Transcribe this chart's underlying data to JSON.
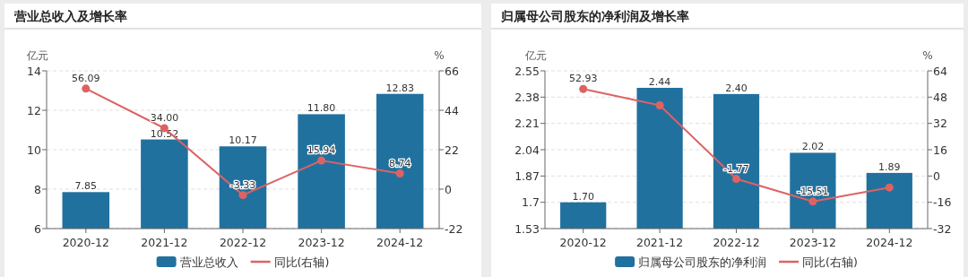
{
  "chart_data": [
    {
      "type": "bar",
      "title": "营业总收入及增长率",
      "ylabel": "亿元",
      "y2label": "%",
      "categories": [
        "2020-12",
        "2021-12",
        "2022-12",
        "2023-12",
        "2024-12"
      ],
      "series": [
        {
          "name": "营业总收入",
          "color": "#21719f",
          "values": [
            7.85,
            10.52,
            10.17,
            11.8,
            12.83
          ],
          "value_labels": [
            "7.85",
            "10.52",
            "10.17",
            "11.80",
            "12.83"
          ]
        },
        {
          "name": "同比(右轴)",
          "type": "line",
          "axis": "y2",
          "color": "#dd6363",
          "values": [
            56.09,
            34.0,
            -3.33,
            15.94,
            8.74
          ],
          "value_labels": [
            "56.09",
            "34.00",
            "-3.33",
            "15.94",
            "8.74"
          ]
        }
      ],
      "ylim": [
        6,
        14
      ],
      "yticks": [
        6,
        8,
        10,
        12,
        14
      ],
      "y2lim": [
        -22,
        66
      ],
      "y2ticks": [
        -22,
        0,
        22,
        44,
        66
      ],
      "grid": "y",
      "legend": "bottom",
      "marker": "circle"
    },
    {
      "type": "bar",
      "title": "归属母公司股东的净利润及增长率",
      "ylabel": "亿元",
      "y2label": "%",
      "categories": [
        "2020-12",
        "2021-12",
        "2022-12",
        "2023-12",
        "2024-12"
      ],
      "series": [
        {
          "name": "归属母公司股东的净利润",
          "color": "#21719f",
          "values": [
            1.7,
            2.44,
            2.4,
            2.02,
            1.89
          ],
          "value_labels": [
            "1.70",
            "2.44",
            "2.40",
            "2.02",
            "1.89"
          ]
        },
        {
          "name": "同比(右轴)",
          "type": "line",
          "axis": "y2",
          "color": "#dd6363",
          "values": [
            52.93,
            43,
            -1.77,
            -15.51,
            -7
          ],
          "value_labels": [
            "52.93",
            null,
            "-1.77",
            "-15.51",
            null
          ]
        }
      ],
      "ylim": [
        1.53,
        2.55
      ],
      "yticks": [
        1.53,
        1.7,
        1.87,
        2.04,
        2.21,
        2.38,
        2.55
      ],
      "y2lim": [
        -32,
        64
      ],
      "y2ticks": [
        -32,
        -16,
        0,
        16,
        32,
        48,
        64
      ],
      "grid": "y",
      "legend": "bottom",
      "marker": "circle"
    }
  ]
}
